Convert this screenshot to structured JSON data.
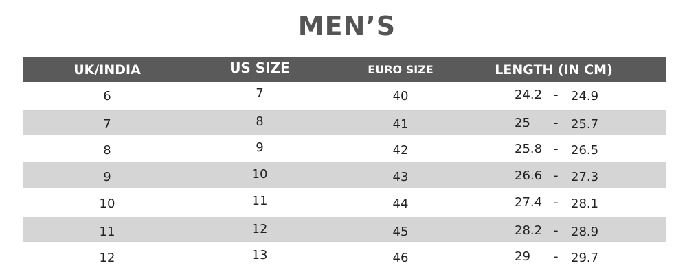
{
  "title": "MEN’S",
  "columns": [
    "UK/INDIA",
    "US SIZE",
    "EURO SIZE",
    "LENGTH (IN CM)"
  ],
  "rows": [
    {
      "uk": "6",
      "us": "7",
      "euro": "40",
      "length_min": "24.2",
      "length_max": "24.9"
    },
    {
      "uk": "7",
      "us": "8",
      "euro": "41",
      "length_min": "25",
      "length_max": "25.7"
    },
    {
      "uk": "8",
      "us": "9",
      "euro": "42",
      "length_min": "25.8",
      "length_max": "26.5"
    },
    {
      "uk": "9",
      "us": "10",
      "euro": "43",
      "length_min": "26.6",
      "length_max": "27.3"
    },
    {
      "uk": "10",
      "us": "11",
      "euro": "44",
      "length_min": "27.4",
      "length_max": "28.1"
    },
    {
      "uk": "11",
      "us": "12",
      "euro": "45",
      "length_min": "28.2",
      "length_max": "28.9"
    },
    {
      "uk": "12",
      "us": "13",
      "euro": "46",
      "length_min": "29",
      "length_max": "29.7"
    }
  ],
  "range_separator": "-",
  "colors": {
    "header_bg": "#5a5a5a",
    "stripe_bg": "#d5d5d5",
    "title": "#555555"
  }
}
